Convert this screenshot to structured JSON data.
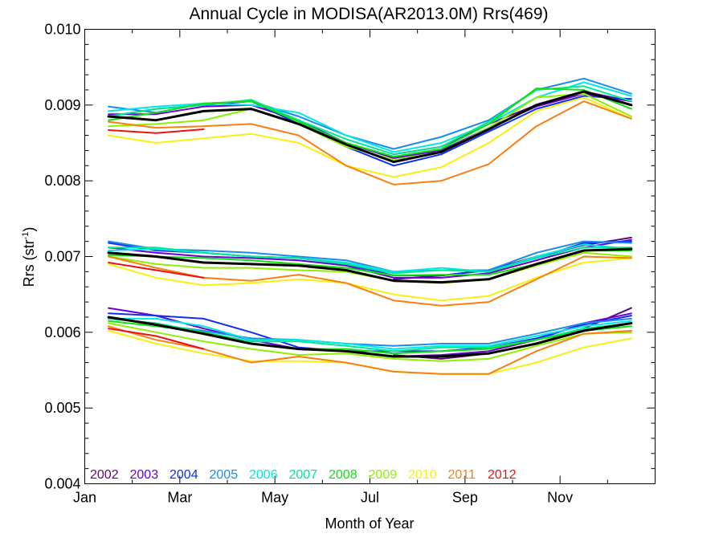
{
  "chart_data": {
    "type": "line",
    "title": "Annual Cycle in MODISA(AR2013.0M) Rrs(469)",
    "xlabel": "Month of Year",
    "ylabel_main": "Rrs (str",
    "ylabel_sup": "-1",
    "ylabel_close": ")",
    "xlim": [
      1,
      13
    ],
    "ylim": [
      0.004,
      0.01
    ],
    "x_ticks": [
      {
        "value": 1,
        "label": "Jan"
      },
      {
        "value": 3,
        "label": "Mar"
      },
      {
        "value": 5,
        "label": "May"
      },
      {
        "value": 7,
        "label": "Jul"
      },
      {
        "value": 9,
        "label": "Sep"
      },
      {
        "value": 11,
        "label": "Nov"
      }
    ],
    "y_ticks": [
      {
        "value": 0.004,
        "label": "0.004"
      },
      {
        "value": 0.005,
        "label": "0.005"
      },
      {
        "value": 0.006,
        "label": "0.006"
      },
      {
        "value": 0.007,
        "label": "0.007"
      },
      {
        "value": 0.008,
        "label": "0.008"
      },
      {
        "value": 0.009,
        "label": "0.009"
      },
      {
        "value": 0.01,
        "label": "0.010"
      }
    ],
    "x": [
      1.5,
      2.5,
      3.5,
      4.5,
      5.5,
      6.5,
      7.5,
      8.5,
      9.5,
      10.5,
      11.5,
      12.5
    ],
    "legend": [
      {
        "label": "2002",
        "color": "#5a0a7a"
      },
      {
        "label": "2003",
        "color": "#6a00d8"
      },
      {
        "label": "2004",
        "color": "#1030f0"
      },
      {
        "label": "2005",
        "color": "#1a8cf0"
      },
      {
        "label": "2006",
        "color": "#00e8e8"
      },
      {
        "label": "2007",
        "color": "#00e890"
      },
      {
        "label": "2008",
        "color": "#10e010"
      },
      {
        "label": "2009",
        "color": "#90f000"
      },
      {
        "label": "2010",
        "color": "#f8f010"
      },
      {
        "label": "2011",
        "color": "#f88010"
      },
      {
        "label": "2012",
        "color": "#f01010"
      }
    ],
    "series": [
      {
        "color": "#5a0a7a",
        "values": [
          null,
          null,
          null,
          null,
          null,
          null,
          0.00835,
          0.00845,
          0.00875,
          0.009,
          0.00918,
          0.00905
        ]
      },
      {
        "color": "#6a00d8",
        "values": [
          0.00888,
          0.00888,
          0.00898,
          0.009,
          0.0088,
          0.0085,
          0.0083,
          0.0084,
          0.0087,
          0.00898,
          0.00915,
          0.00905
        ]
      },
      {
        "color": "#1030f0",
        "values": [
          0.00885,
          0.00895,
          0.009,
          0.00905,
          0.00875,
          0.00845,
          0.0082,
          0.00835,
          0.00865,
          0.00895,
          0.00912,
          0.00908
        ]
      },
      {
        "color": "#1a8cf0",
        "values": [
          0.00898,
          0.0089,
          0.00902,
          0.00905,
          0.00885,
          0.0086,
          0.00842,
          0.00858,
          0.0088,
          0.0092,
          0.00935,
          0.00915
        ]
      },
      {
        "color": "#00e8e8",
        "values": [
          0.00892,
          0.00898,
          0.00902,
          0.009,
          0.0089,
          0.0086,
          0.00838,
          0.0085,
          0.00875,
          0.0091,
          0.0093,
          0.00912
        ]
      },
      {
        "color": "#00e890",
        "values": [
          0.00885,
          0.00895,
          0.009,
          0.00907,
          0.0088,
          0.00855,
          0.00835,
          0.00845,
          0.00878,
          0.0092,
          0.00925,
          0.00905
        ]
      },
      {
        "color": "#10e010",
        "values": [
          0.0088,
          0.0089,
          0.00902,
          0.00905,
          0.00878,
          0.0085,
          0.00832,
          0.00842,
          0.00875,
          0.00922,
          0.0092,
          0.00895
        ]
      },
      {
        "color": "#90f000",
        "values": [
          0.00872,
          0.00875,
          0.0088,
          0.00895,
          0.00875,
          0.00845,
          0.00828,
          0.00838,
          0.0087,
          0.0091,
          0.00915,
          0.00885
        ]
      },
      {
        "color": "#f8f010",
        "values": [
          0.0086,
          0.0085,
          0.00856,
          0.00862,
          0.0085,
          0.0082,
          0.00805,
          0.00818,
          0.0085,
          0.00892,
          0.0091,
          0.00882
        ]
      },
      {
        "color": "#f88010",
        "values": [
          0.00878,
          0.0087,
          0.00872,
          0.00875,
          0.0086,
          0.0082,
          0.00795,
          0.008,
          0.00822,
          0.00872,
          0.00905,
          0.00882
        ]
      },
      {
        "color": "#f01010",
        "values": [
          0.00867,
          0.00863,
          0.00868,
          null,
          null,
          null,
          null,
          null,
          null,
          null,
          null,
          null
        ]
      },
      {
        "color": "#000000",
        "climatology": true,
        "values": [
          0.00885,
          0.0088,
          0.00892,
          0.00895,
          0.00875,
          0.00848,
          0.00825,
          0.00838,
          0.00868,
          0.009,
          0.00918,
          0.009
        ]
      },
      {
        "color": "#5a0a7a",
        "values": [
          null,
          null,
          null,
          null,
          null,
          null,
          0.0067,
          0.00675,
          0.00682,
          0.007,
          0.00715,
          0.00725
        ]
      },
      {
        "color": "#6a00d8",
        "values": [
          0.00712,
          0.00705,
          0.007,
          0.00698,
          0.00695,
          0.00688,
          0.00672,
          0.00672,
          0.00678,
          0.00695,
          0.00712,
          0.00722
        ]
      },
      {
        "color": "#1030f0",
        "values": [
          0.00718,
          0.00708,
          0.00705,
          0.007,
          0.00698,
          0.0069,
          0.00675,
          0.00675,
          0.00682,
          0.00698,
          0.00718,
          0.0072
        ]
      },
      {
        "color": "#1a8cf0",
        "values": [
          0.0072,
          0.0071,
          0.00708,
          0.00705,
          0.007,
          0.00695,
          0.0068,
          0.00682,
          0.00682,
          0.00705,
          0.0072,
          0.00718
        ]
      },
      {
        "color": "#00e8e8",
        "values": [
          0.00708,
          0.0071,
          0.00705,
          0.007,
          0.00698,
          0.00692,
          0.0068,
          0.00685,
          0.0068,
          0.007,
          0.00716,
          0.0071
        ]
      },
      {
        "color": "#00e890",
        "values": [
          0.00712,
          0.00712,
          0.00705,
          0.007,
          0.00698,
          0.0069,
          0.00678,
          0.00682,
          0.0068,
          0.00698,
          0.00712,
          0.00712
        ]
      },
      {
        "color": "#10e010",
        "values": [
          0.00702,
          0.007,
          0.00698,
          0.00695,
          0.0069,
          0.00685,
          0.00675,
          0.00676,
          0.00676,
          0.0069,
          0.00708,
          0.00708
        ]
      },
      {
        "color": "#90f000",
        "values": [
          0.007,
          0.0069,
          0.00685,
          0.00685,
          0.00682,
          0.0068,
          0.00668,
          0.00665,
          0.0067,
          0.00688,
          0.00705,
          0.007
        ]
      },
      {
        "color": "#f8f010",
        "values": [
          0.0069,
          0.00672,
          0.00662,
          0.00665,
          0.0067,
          0.00665,
          0.0065,
          0.00642,
          0.00648,
          0.00672,
          0.00692,
          0.00698
        ]
      },
      {
        "color": "#f88010",
        "values": [
          0.007,
          0.00685,
          0.00672,
          0.00668,
          0.00676,
          0.00665,
          0.00642,
          0.00635,
          0.0064,
          0.0067,
          0.007,
          0.00698
        ]
      },
      {
        "color": "#f01010",
        "values": [
          0.00692,
          0.00682,
          0.00672,
          null,
          null,
          null,
          null,
          null,
          null,
          null,
          null,
          null
        ]
      },
      {
        "color": "#000000",
        "climatology": true,
        "values": [
          0.00705,
          0.007,
          0.00692,
          0.0069,
          0.00688,
          0.00682,
          0.00668,
          0.00666,
          0.0067,
          0.0069,
          0.00708,
          0.0071
        ]
      },
      {
        "color": "#5a0a7a",
        "values": [
          null,
          null,
          null,
          null,
          null,
          null,
          0.0057,
          0.00565,
          0.00572,
          0.00585,
          0.00605,
          0.00632
        ]
      },
      {
        "color": "#6a00d8",
        "values": [
          0.00632,
          0.00622,
          0.00605,
          0.0059,
          0.00578,
          0.00575,
          0.00568,
          0.0057,
          0.00575,
          0.0059,
          0.00612,
          0.00625
        ]
      },
      {
        "color": "#1030f0",
        "values": [
          0.00625,
          0.00622,
          0.00618,
          0.006,
          0.0058,
          0.00575,
          0.00575,
          0.00575,
          0.0058,
          0.00592,
          0.0061,
          0.00622
        ]
      },
      {
        "color": "#1a8cf0",
        "values": [
          0.0062,
          0.0061,
          0.00602,
          0.00592,
          0.0059,
          0.00585,
          0.00582,
          0.00585,
          0.00585,
          0.00598,
          0.00612,
          0.00618
        ]
      },
      {
        "color": "#00e8e8",
        "values": [
          0.00618,
          0.00618,
          0.00608,
          0.0059,
          0.0059,
          0.00585,
          0.00578,
          0.00582,
          0.00582,
          0.00595,
          0.00608,
          0.00615
        ]
      },
      {
        "color": "#00e890",
        "values": [
          0.00618,
          0.00612,
          0.006,
          0.00588,
          0.00588,
          0.00582,
          0.00575,
          0.0058,
          0.0058,
          0.0059,
          0.00605,
          0.00612
        ]
      },
      {
        "color": "#10e010",
        "values": [
          0.00615,
          0.00608,
          0.006,
          0.00585,
          0.00578,
          0.00578,
          0.00572,
          0.00575,
          0.00578,
          0.0059,
          0.00602,
          0.00608
        ]
      },
      {
        "color": "#90f000",
        "values": [
          0.00612,
          0.006,
          0.00588,
          0.00578,
          0.0057,
          0.00572,
          0.00565,
          0.00562,
          0.00565,
          0.00582,
          0.00598,
          0.006
        ]
      },
      {
        "color": "#f8f010",
        "values": [
          0.00602,
          0.00585,
          0.00572,
          0.00562,
          0.00562,
          0.0056,
          0.00548,
          0.00545,
          0.00545,
          0.0056,
          0.0058,
          0.00592
        ]
      },
      {
        "color": "#f88010",
        "values": [
          0.00608,
          0.0059,
          0.00578,
          0.0056,
          0.00568,
          0.0056,
          0.00548,
          0.00545,
          0.00545,
          0.00575,
          0.00598,
          0.00602
        ]
      },
      {
        "color": "#f01010",
        "values": [
          0.00605,
          0.00595,
          0.00578,
          null,
          null,
          null,
          null,
          null,
          null,
          null,
          null,
          null
        ]
      },
      {
        "color": "#000000",
        "climatology": true,
        "values": [
          0.0062,
          0.0061,
          0.00598,
          0.00585,
          0.00578,
          0.00575,
          0.00568,
          0.00568,
          0.00572,
          0.00585,
          0.00602,
          0.00612
        ]
      }
    ]
  }
}
